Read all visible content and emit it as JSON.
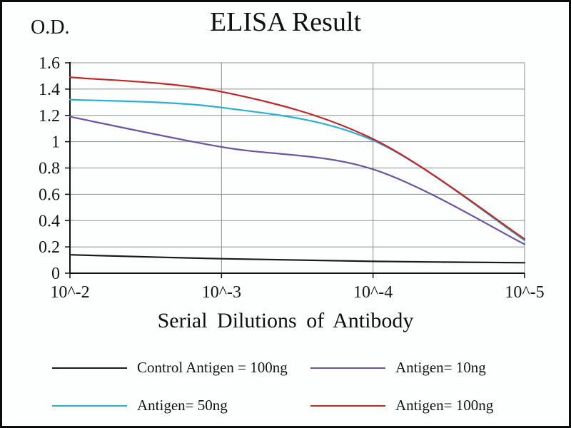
{
  "chart_data": {
    "type": "line",
    "title": "ELISA Result",
    "ylabel": "O.D.",
    "xlabel": "Serial Dilutions  of Antibody",
    "x_ticklabels": [
      "10^-2",
      "10^-3",
      "10^-4",
      "10^-5"
    ],
    "yticks": [
      0,
      0.2,
      0.4,
      0.6,
      0.8,
      1,
      1.2,
      1.4,
      1.6
    ],
    "ylim": [
      0,
      1.6
    ],
    "grid": true,
    "legend_position": "bottom",
    "gridline_color": "#8f8f8f",
    "axis_color": "#111111",
    "series": [
      {
        "name": "Control Antigen = 100ng",
        "color": "#1a1a1a",
        "values": [
          0.14,
          0.11,
          0.09,
          0.08
        ]
      },
      {
        "name": "Antigen= 10ng",
        "color": "#6d55a3",
        "values": [
          1.19,
          0.96,
          0.79,
          0.22
        ]
      },
      {
        "name": "Antigen= 50ng",
        "color": "#29b0d8",
        "values": [
          1.32,
          1.26,
          1.01,
          0.25
        ]
      },
      {
        "name": "Antigen= 100ng",
        "color": "#c22627",
        "values": [
          1.49,
          1.38,
          1.02,
          0.26
        ]
      }
    ]
  }
}
